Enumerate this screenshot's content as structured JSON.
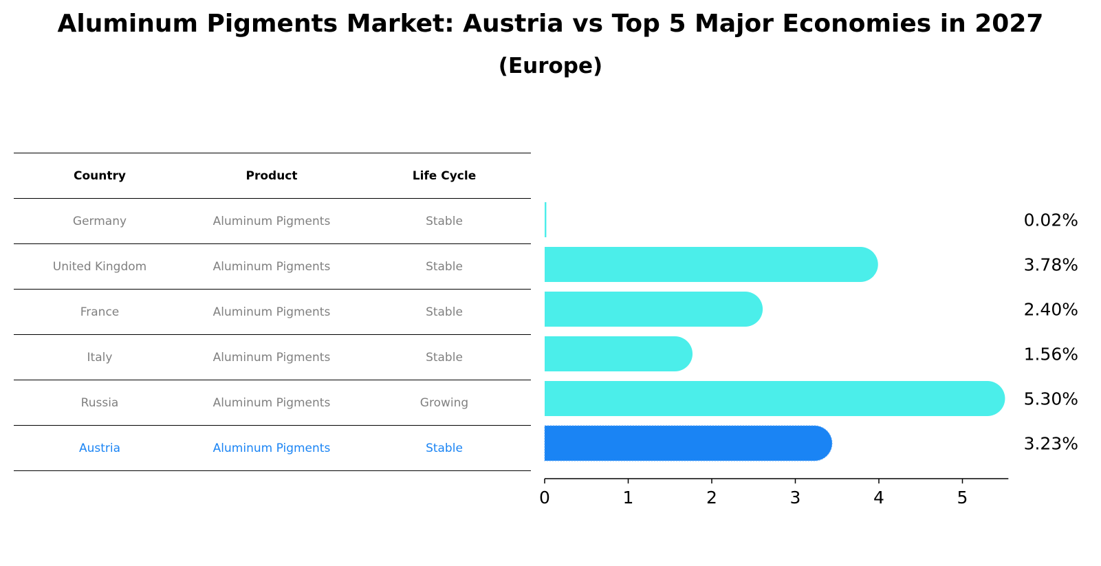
{
  "title": "Aluminum Pigments Market: Austria vs Top 5 Major Economies in 2027",
  "subtitle": "(Europe)",
  "table": {
    "headers": [
      "Country",
      "Product",
      "Life Cycle"
    ],
    "rows": [
      {
        "country": "Germany",
        "product": "Aluminum Pigments",
        "life_cycle": "Stable",
        "highlight": false
      },
      {
        "country": "United Kingdom",
        "product": "Aluminum Pigments",
        "life_cycle": "Stable",
        "highlight": false
      },
      {
        "country": "France",
        "product": "Aluminum Pigments",
        "life_cycle": "Stable",
        "highlight": false
      },
      {
        "country": "Italy",
        "product": "Aluminum Pigments",
        "life_cycle": "Stable",
        "highlight": false
      },
      {
        "country": "Russia",
        "product": "Aluminum Pigments",
        "life_cycle": "Growing",
        "highlight": false
      },
      {
        "country": "Austria",
        "product": "Aluminum Pigments",
        "life_cycle": "Stable",
        "highlight": true
      }
    ]
  },
  "colors": {
    "bar": "#4beeea",
    "highlight_bar": "#1a84f4",
    "highlight_text": "#1a84f4",
    "muted_text": "#808080"
  },
  "chart_data": {
    "type": "bar",
    "orientation": "horizontal",
    "categories": [
      "Germany",
      "United Kingdom",
      "France",
      "Italy",
      "Russia",
      "Austria"
    ],
    "values": [
      0.02,
      3.78,
      2.4,
      1.56,
      5.3,
      3.23
    ],
    "value_labels": [
      "0.02%",
      "3.78%",
      "2.40%",
      "1.56%",
      "5.30%",
      "3.23%"
    ],
    "highlight": "Austria",
    "xticks": [
      "0",
      "1",
      "2",
      "3",
      "4",
      "5"
    ],
    "xlim": [
      0,
      5.55
    ],
    "grid": false
  }
}
